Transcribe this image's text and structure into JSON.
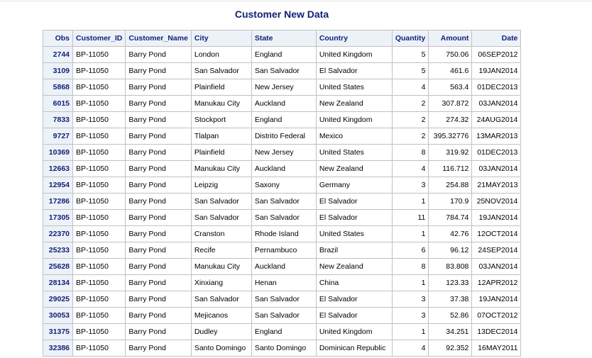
{
  "report": {
    "title": "Customer New Data",
    "columns": [
      "Obs",
      "Customer_ID",
      "Customer_Name",
      "City",
      "State",
      "Country",
      "Quantity",
      "Amount",
      "Date"
    ],
    "rows": [
      [
        "2744",
        "BP-11050",
        "Barry Pond",
        "London",
        "England",
        "United Kingdom",
        "5",
        "750.06",
        "06SEP2012"
      ],
      [
        "3109",
        "BP-11050",
        "Barry Pond",
        "San Salvador",
        "San Salvador",
        "El Salvador",
        "5",
        "461.6",
        "19JAN2014"
      ],
      [
        "5868",
        "BP-11050",
        "Barry Pond",
        "Plainfield",
        "New Jersey",
        "United States",
        "4",
        "563.4",
        "01DEC2013"
      ],
      [
        "6015",
        "BP-11050",
        "Barry Pond",
        "Manukau City",
        "Auckland",
        "New Zealand",
        "2",
        "307.872",
        "03JAN2014"
      ],
      [
        "7833",
        "BP-11050",
        "Barry Pond",
        "Stockport",
        "England",
        "United Kingdom",
        "2",
        "274.32",
        "24AUG2014"
      ],
      [
        "9727",
        "BP-11050",
        "Barry Pond",
        "Tlalpan",
        "Distrito Federal",
        "Mexico",
        "2",
        "395.32776",
        "13MAR2013"
      ],
      [
        "10369",
        "BP-11050",
        "Barry Pond",
        "Plainfield",
        "New Jersey",
        "United States",
        "8",
        "319.92",
        "01DEC2013"
      ],
      [
        "12663",
        "BP-11050",
        "Barry Pond",
        "Manukau City",
        "Auckland",
        "New Zealand",
        "4",
        "116.712",
        "03JAN2014"
      ],
      [
        "12954",
        "BP-11050",
        "Barry Pond",
        "Leipzig",
        "Saxony",
        "Germany",
        "3",
        "254.88",
        "21MAY2013"
      ],
      [
        "17286",
        "BP-11050",
        "Barry Pond",
        "San Salvador",
        "San Salvador",
        "El Salvador",
        "1",
        "170.9",
        "25NOV2014"
      ],
      [
        "17305",
        "BP-11050",
        "Barry Pond",
        "San Salvador",
        "San Salvador",
        "El Salvador",
        "11",
        "784.74",
        "19JAN2014"
      ],
      [
        "22370",
        "BP-11050",
        "Barry Pond",
        "Cranston",
        "Rhode Island",
        "United States",
        "1",
        "42.76",
        "12OCT2014"
      ],
      [
        "25233",
        "BP-11050",
        "Barry Pond",
        "Recife",
        "Pernambuco",
        "Brazil",
        "6",
        "96.12",
        "24SEP2014"
      ],
      [
        "25628",
        "BP-11050",
        "Barry Pond",
        "Manukau City",
        "Auckland",
        "New Zealand",
        "8",
        "83.808",
        "03JAN2014"
      ],
      [
        "28134",
        "BP-11050",
        "Barry Pond",
        "Xinxiang",
        "Henan",
        "China",
        "1",
        "123.33",
        "12APR2012"
      ],
      [
        "29025",
        "BP-11050",
        "Barry Pond",
        "San Salvador",
        "San Salvador",
        "El Salvador",
        "3",
        "37.38",
        "19JAN2014"
      ],
      [
        "30053",
        "BP-11050",
        "Barry Pond",
        "Mejicanos",
        "San Salvador",
        "El Salvador",
        "3",
        "52.86",
        "07OCT2012"
      ],
      [
        "31375",
        "BP-11050",
        "Barry Pond",
        "Dudley",
        "England",
        "United Kingdom",
        "1",
        "34.251",
        "13DEC2014"
      ],
      [
        "32386",
        "BP-11050",
        "Barry Pond",
        "Santo Domingo",
        "Santo Domingo",
        "Dominican Republic",
        "4",
        "92.352",
        "16MAY2011"
      ]
    ]
  },
  "colors": {
    "header_text": "#112277",
    "header_background": "#edf2f9",
    "grid_border": "#c1c1c1"
  }
}
